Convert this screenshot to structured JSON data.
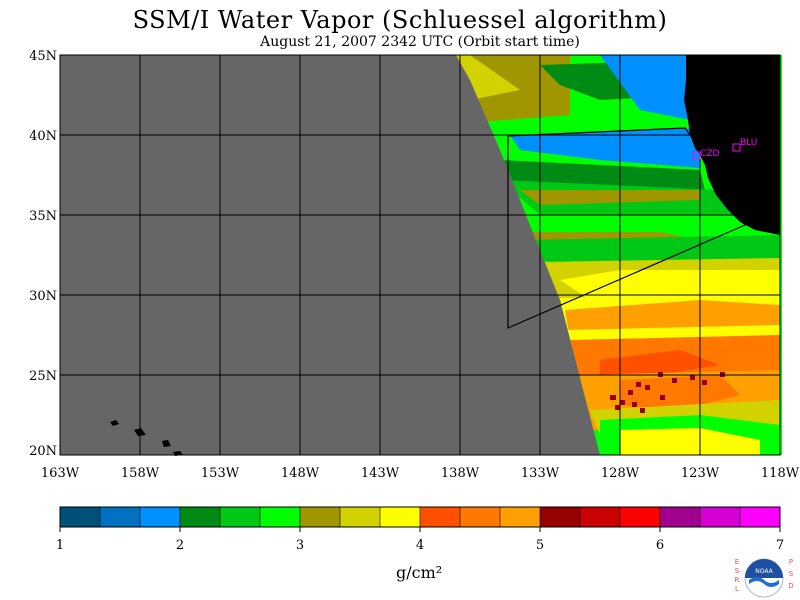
{
  "title": "SSM/I Water Vapor (Schluessel algorithm)",
  "subtitle": "August 21, 2007  2342 UTC  (Orbit start time)",
  "map": {
    "lat_labels": [
      "45N",
      "40N",
      "35N",
      "30N",
      "25N",
      "20N"
    ],
    "lon_labels": [
      "163W",
      "158W",
      "153W",
      "148W",
      "143W",
      "138W",
      "133W",
      "128W",
      "123W",
      "118W"
    ],
    "stations": [
      {
        "id": "CZD",
        "label": "CZD"
      },
      {
        "id": "BLU",
        "label": "BLU"
      }
    ],
    "colors": {
      "no_data": "#666666",
      "land": "#000000",
      "station": "#ff00ff"
    }
  },
  "colorbar": {
    "colors": [
      "#00507a",
      "#0070c0",
      "#0090ff",
      "#008c14",
      "#00c814",
      "#00ff00",
      "#a09600",
      "#d2d200",
      "#ffff00",
      "#ff5000",
      "#ff7800",
      "#ffa000",
      "#960000",
      "#c80000",
      "#ff0000",
      "#a0008c",
      "#d200d2",
      "#ff00ff"
    ],
    "tick_labels": [
      "1",
      "2",
      "3",
      "4",
      "5",
      "6",
      "7"
    ],
    "unit_label": "g/cm²"
  },
  "logo": {
    "left_text": "ESRL",
    "right_text": "PSD",
    "badge": "NOAA"
  }
}
